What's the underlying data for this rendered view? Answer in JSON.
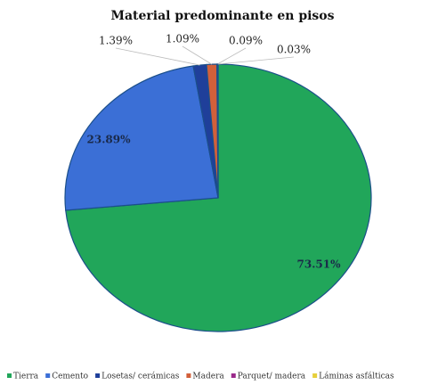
{
  "chart_data": {
    "type": "pie",
    "title": "Material predominante en pisos",
    "categories": [
      "Tierra",
      "Cemento",
      "Losetas/ cerámicas",
      "Madera",
      "Parquet/ madera",
      "Láminas asfálticas"
    ],
    "values": [
      73.51,
      23.89,
      1.39,
      1.09,
      0.09,
      0.03
    ],
    "value_labels": [
      "73.51%",
      "23.89%",
      "1.39%",
      "1.09%",
      "0.09%",
      "0.03%"
    ],
    "colors": [
      "#21a65a",
      "#3b6fd6",
      "#1f3f9a",
      "#d2603a",
      "#9a2a8a",
      "#e6cf3c"
    ],
    "legend": "bottom"
  }
}
